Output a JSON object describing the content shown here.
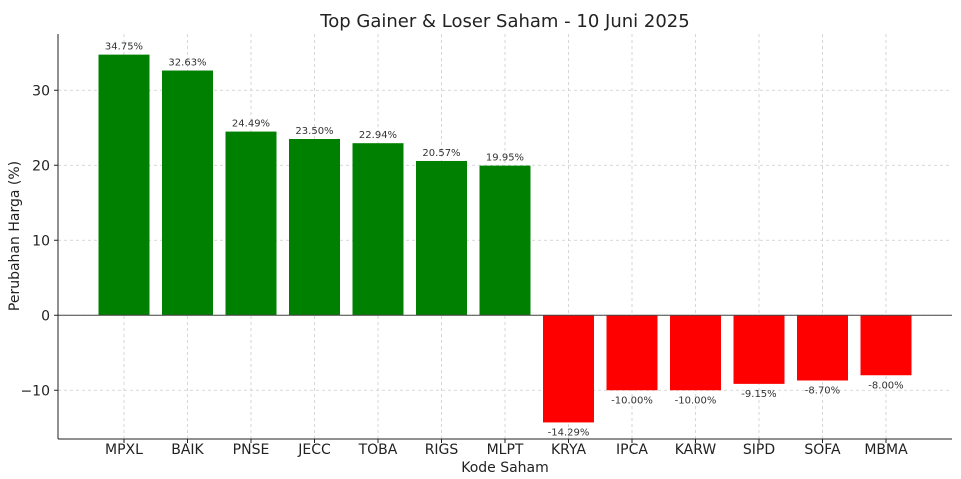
{
  "chart_data": {
    "type": "bar",
    "title": "Top Gainer & Loser Saham - 10 Juni 2025",
    "xlabel": "Kode Saham",
    "ylabel": "Perubahan Harga (%)",
    "categories": [
      "MPXL",
      "BAIK",
      "PNSE",
      "JECC",
      "TOBA",
      "RIGS",
      "MLPT",
      "KRYA",
      "IPCA",
      "KARW",
      "SIPD",
      "SOFA",
      "MBMA"
    ],
    "values": [
      34.75,
      32.63,
      24.49,
      23.5,
      22.94,
      20.57,
      19.95,
      -14.29,
      -10.0,
      -10.0,
      -9.15,
      -8.7,
      -8.0
    ],
    "value_labels": [
      "34.75%",
      "32.63%",
      "24.49%",
      "23.50%",
      "22.94%",
      "20.57%",
      "19.95%",
      "-14.29%",
      "-10.00%",
      "-10.00%",
      "-9.15%",
      "-8.70%",
      "-8.00%"
    ],
    "ylim": [
      -16.5,
      37.5
    ],
    "yticks": [
      -10,
      0,
      10,
      20,
      30
    ],
    "ytick_labels": [
      "−10",
      "0",
      "10",
      "20",
      "30"
    ],
    "grid": true,
    "colors": {
      "gain": "#008000",
      "loss": "#ff0000",
      "grid": "#cccccc",
      "zero_line": "#444444"
    }
  }
}
